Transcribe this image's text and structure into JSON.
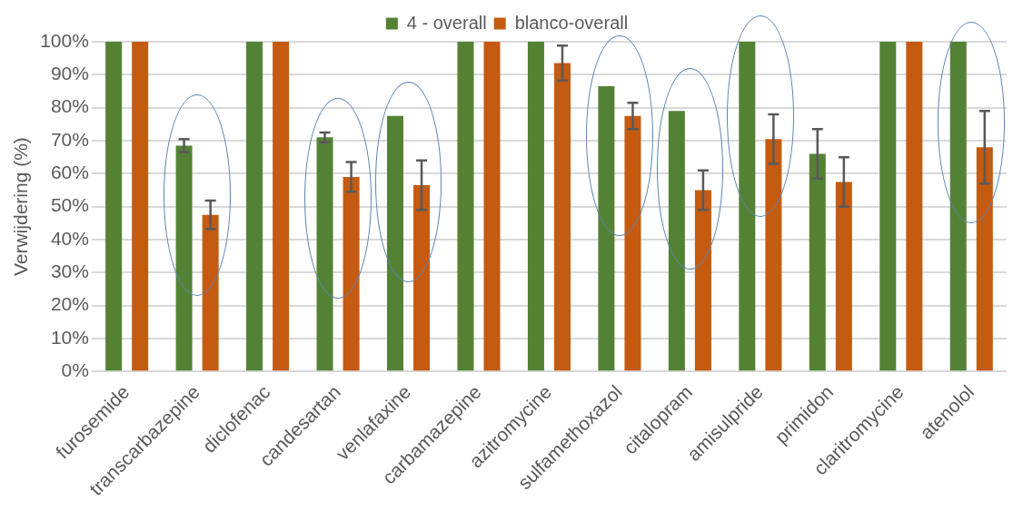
{
  "chart_data": {
    "type": "bar",
    "ylabel": "Verwijdering (%)",
    "categories": [
      "furosemide",
      "transcarbazepine",
      "diclofenac",
      "candesartan",
      "venlafaxine",
      "carbamazepine",
      "azitromycine",
      "sulfamethoxazol",
      "citalopram",
      "amisulpride",
      "primidon",
      "claritromycine",
      "atenolol"
    ],
    "series": [
      {
        "name": "4 - overall",
        "color": "#548235",
        "values": [
          100,
          68.5,
          100,
          71,
          77.5,
          100,
          100,
          86.5,
          79,
          100,
          66,
          100,
          100
        ],
        "errors": [
          null,
          2,
          null,
          1.5,
          null,
          null,
          null,
          null,
          null,
          null,
          7.5,
          null,
          null
        ]
      },
      {
        "name": "blanco-overall",
        "color": "#c55a11",
        "values": [
          100,
          47.5,
          100,
          59,
          56.5,
          100,
          93.5,
          77.5,
          55,
          70.5,
          57.5,
          100,
          68
        ],
        "errors": [
          null,
          4.3,
          null,
          4.5,
          7.5,
          null,
          5.3,
          4,
          6,
          7.5,
          7.5,
          null,
          11
        ]
      }
    ],
    "ylim": [
      0,
      100
    ],
    "yticks": [
      {
        "value": 0,
        "label": "0%"
      },
      {
        "value": 10,
        "label": "10%"
      },
      {
        "value": 20,
        "label": "20%"
      },
      {
        "value": 30,
        "label": "30%"
      },
      {
        "value": 40,
        "label": "40%"
      },
      {
        "value": 50,
        "label": "50%"
      },
      {
        "value": 60,
        "label": "60%"
      },
      {
        "value": 70,
        "label": "70%"
      },
      {
        "value": 80,
        "label": "80%"
      },
      {
        "value": 90,
        "label": "90%"
      },
      {
        "value": 100,
        "label": "100%"
      }
    ],
    "grid": "y",
    "legend": "top"
  }
}
